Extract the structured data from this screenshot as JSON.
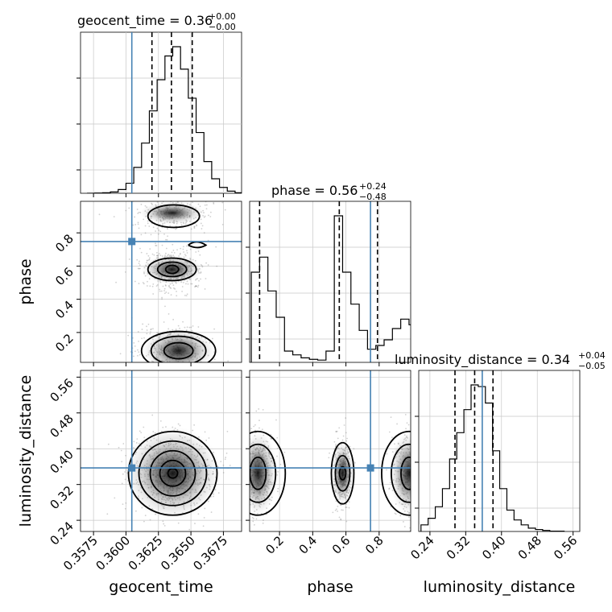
{
  "chart_data": {
    "type": "corner",
    "truth_color": "#4682b4",
    "parameters": [
      "geocent_time",
      "phase",
      "luminosity_distance"
    ],
    "titles": [
      {
        "name": "geocent_time",
        "median": "0.36",
        "plus": "+0.00",
        "minus": "−0.00"
      },
      {
        "name": "phase",
        "median": "0.56",
        "plus": "+0.24",
        "minus": "−0.48"
      },
      {
        "name": "luminosity_distance",
        "median": "0.34",
        "plus": "+0.04",
        "minus": "−0.05"
      }
    ],
    "ranges": {
      "geocent_time": [
        0.3565,
        0.3689
      ],
      "phase": [
        0.02,
        0.99
      ],
      "luminosity_distance": [
        0.215,
        0.575
      ]
    },
    "ticks": {
      "geocent_time": [
        "0.3575",
        "0.3600",
        "0.3625",
        "0.3650",
        "0.3675"
      ],
      "phase": [
        "0.2",
        "0.4",
        "0.6",
        "0.8"
      ],
      "luminosity_distance": [
        "0.24",
        "0.32",
        "0.40",
        "0.48",
        "0.56"
      ]
    },
    "truths": {
      "geocent_time": 0.36045,
      "phase": 0.748,
      "luminosity_distance": 0.357
    },
    "quantiles": {
      "geocent_time": [
        0.362,
        0.3635,
        0.3651
      ],
      "phase": [
        0.08,
        0.56,
        0.79
      ],
      "luminosity_distance": [
        0.296,
        0.34,
        0.381
      ]
    },
    "hist_geocent_time": {
      "bins": [
        0.357,
        0.3576,
        0.3582,
        0.3588,
        0.3594,
        0.36,
        0.3606,
        0.3612,
        0.3618,
        0.3624,
        0.363,
        0.3636,
        0.3642,
        0.3648,
        0.3654,
        0.366,
        0.3666,
        0.3672,
        0.3678,
        0.3684
      ],
      "counts": [
        0,
        1,
        2,
        5,
        14,
        38,
        98,
        190,
        312,
        430,
        520,
        555,
        470,
        360,
        230,
        120,
        55,
        22,
        8,
        2
      ]
    },
    "hist_phase": {
      "bins": [
        0.03,
        0.08,
        0.13,
        0.18,
        0.23,
        0.28,
        0.33,
        0.38,
        0.43,
        0.48,
        0.53,
        0.58,
        0.63,
        0.68,
        0.73,
        0.78,
        0.83,
        0.88,
        0.93,
        0.98
      ],
      "counts": [
        240,
        280,
        190,
        120,
        30,
        20,
        12,
        8,
        6,
        30,
        390,
        240,
        155,
        85,
        35,
        45,
        60,
        90,
        115,
        100
      ]
    },
    "hist_luminosity_distance": {
      "bins": [
        0.22,
        0.236,
        0.252,
        0.268,
        0.284,
        0.3,
        0.316,
        0.332,
        0.348,
        0.364,
        0.38,
        0.396,
        0.412,
        0.428,
        0.444,
        0.46,
        0.476,
        0.492,
        0.508,
        0.524
      ],
      "counts": [
        20,
        40,
        75,
        130,
        220,
        300,
        370,
        445,
        440,
        390,
        245,
        130,
        65,
        35,
        20,
        10,
        6,
        3,
        1,
        1
      ]
    }
  }
}
